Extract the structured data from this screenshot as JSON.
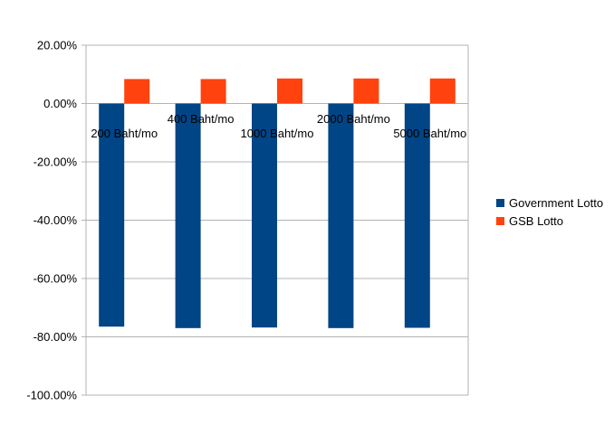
{
  "chart_data": {
    "type": "bar",
    "categories": [
      "200 Baht/mo",
      "400 Baht/mo",
      "1000 Baht/mo",
      "2000 Baht/mo",
      "5000 Baht/mo"
    ],
    "series": [
      {
        "name": "Government Lotto",
        "color": "#004586",
        "values": [
          -76.5,
          -77.0,
          -76.8,
          -77.0,
          -76.9
        ]
      },
      {
        "name": "GSB Lotto",
        "color": "#ff420e",
        "values": [
          8.4,
          8.4,
          8.6,
          8.6,
          8.6
        ]
      }
    ],
    "yticks": [
      "20.00%",
      "0.00%",
      "-20.00%",
      "-40.00%",
      "-60.00%",
      "-80.00%",
      "-100.00%"
    ],
    "ylim": [
      -100,
      20
    ],
    "grid": true,
    "legend": "right"
  }
}
